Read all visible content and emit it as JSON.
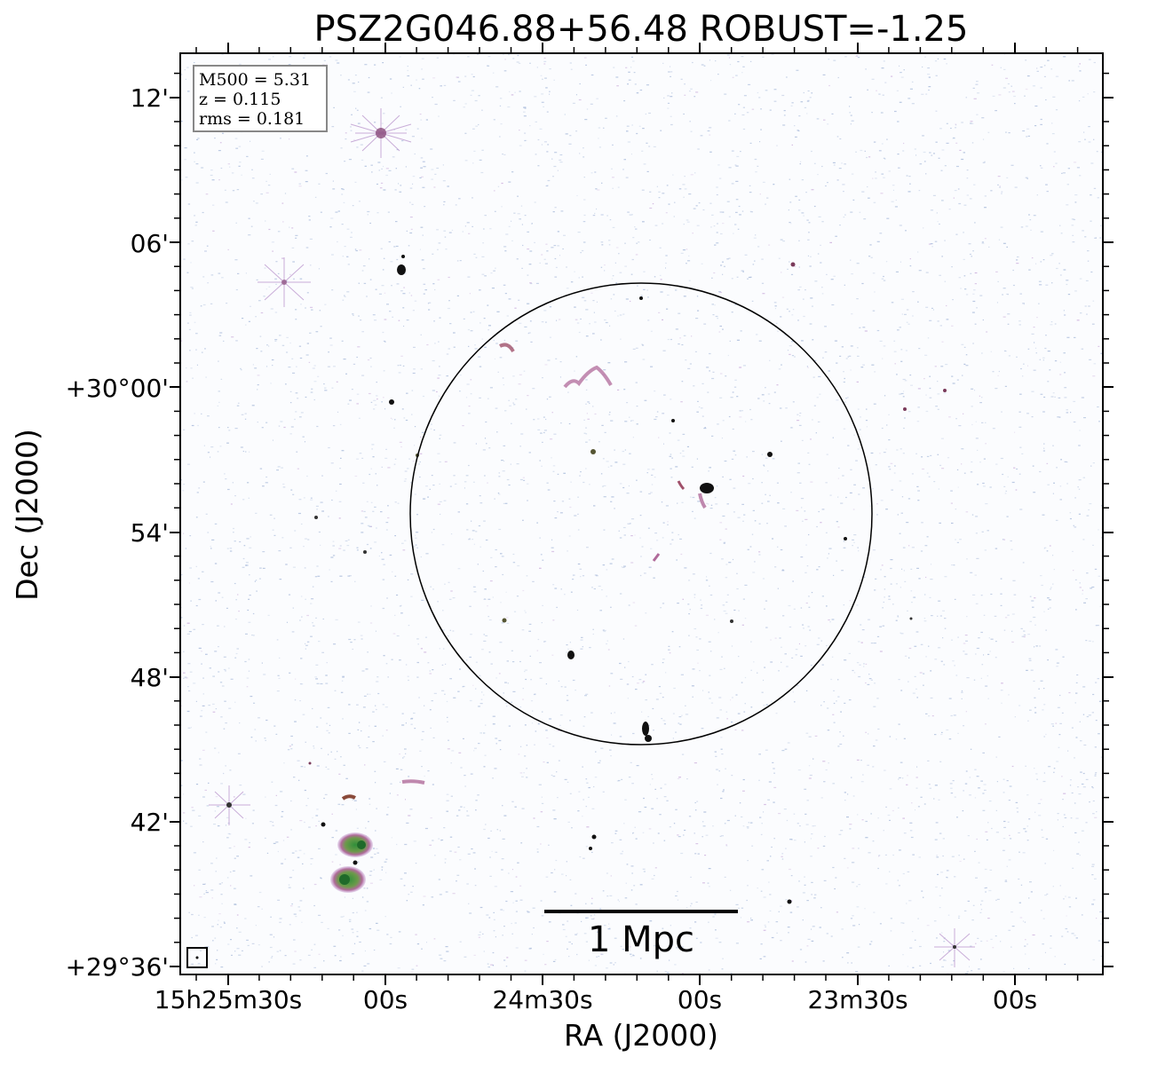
{
  "figure": {
    "title": "PSZ2G046.88+56.48 ROBUST=-1.25",
    "xlabel": "RA (J2000)",
    "ylabel": "Dec (J2000)",
    "info": {
      "m500": "M500 = 5.31",
      "z": "z = 0.115",
      "rms": "rms = 0.181"
    },
    "scalebar_label": "1 Mpc",
    "ra_ticks": [
      "15h25m30s",
      "00s",
      "24m30s",
      "00s",
      "23m30s",
      "00s"
    ],
    "dec_ticks": [
      "12'",
      "06'",
      "+30°00'",
      "54'",
      "48'",
      "42'",
      "+29°36'"
    ],
    "colors": {
      "frame": "#000000",
      "noise": "#9fb3d6",
      "source_core": "#111111",
      "source_mid": "#b06a9a",
      "source_diffuse": "#2f8f3a"
    }
  }
}
